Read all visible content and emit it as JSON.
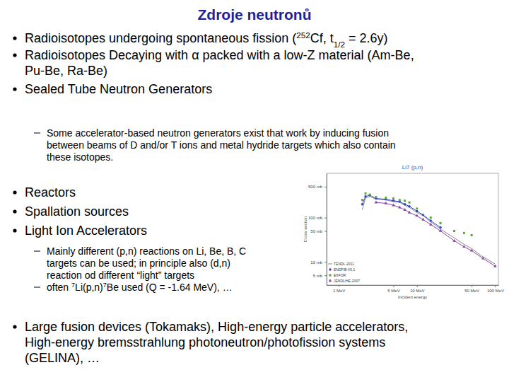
{
  "title": "Zdroje neutronů",
  "blocks": [
    {
      "level": 1,
      "lines": [
        [
          "Radioisotopes undergoing spontaneous fission (",
          {
            "sup": "252"
          },
          "Cf, t",
          {
            "sub": "1/2"
          },
          " = 2.6y)"
        ]
      ]
    },
    {
      "level": 1,
      "lines": [
        [
          "Radioisotopes Decaying with α packed with a low-Z material (Am-Be,"
        ],
        [
          "Pu-Be, Ra-Be)"
        ]
      ]
    },
    {
      "level": 1,
      "lines": [
        [
          "Sealed Tube Neutron Generators"
        ]
      ]
    },
    {
      "level": 2,
      "lines": [
        [
          "Some accelerator-based neutron generators exist that work by inducing fusion"
        ],
        [
          "between beams of D and/or T ions and metal hydride targets which also contain"
        ],
        [
          "these isotopes."
        ]
      ]
    },
    {
      "level": 1,
      "lines": [
        [
          "Reactors"
        ]
      ]
    },
    {
      "level": 1,
      "lines": [
        [
          "Spallation sources"
        ]
      ]
    },
    {
      "level": 1,
      "lines": [
        [
          "Light Ion Accelerators"
        ]
      ]
    },
    {
      "level": 2,
      "lines": [
        [
          "Mainly different (p,n) reactions on Li, Be, B, C"
        ],
        [
          "targets can be used; in principle also (d,n)"
        ],
        [
          "reaction od different “light” targets"
        ]
      ]
    },
    {
      "level": 2,
      "lines": [
        [
          "often ",
          {
            "sup": "7"
          },
          "Li(p,n)",
          {
            "sup": "7"
          },
          "Be used (Q = -1.64 MeV), …"
        ]
      ]
    },
    {
      "level": 1,
      "lines": [
        [
          "Large fusion devices (Tokamaks), High-energy particle accelerators,"
        ],
        [
          "High-energy bremsstrahlung photoneutron/photofission systems"
        ],
        [
          "(GELINA), …"
        ]
      ]
    }
  ],
  "chart_data": {
    "type": "line",
    "title": "Li7 (p,n)",
    "x_label": "Incident energy",
    "y_label": "Cross section",
    "log": true,
    "grid": false,
    "legend": "lower left",
    "xlim": [
      0.7,
      110
    ],
    "xticks": [
      {
        "value": 1,
        "label": "1 MeV"
      },
      {
        "value": 5,
        "label": "5 MeV"
      },
      {
        "value": 10,
        "label": "10 MeV"
      },
      {
        "value": 50,
        "label": "50 MeV"
      },
      {
        "value": 100,
        "label": "100 MeV"
      }
    ],
    "ylim": [
      3,
      1000
    ],
    "yticks": [
      {
        "value": 5,
        "label": "5 mb"
      },
      {
        "value": 10,
        "label": "10 mb"
      },
      {
        "value": 50,
        "label": "50 mb"
      },
      {
        "value": 100,
        "label": "100 mb"
      },
      {
        "value": 500,
        "label": "500 mb"
      }
    ],
    "x": [
      2.0,
      2.2,
      2.5,
      3,
      4,
      5,
      6,
      7,
      8,
      10,
      12,
      15,
      20,
      30,
      40,
      50,
      70,
      100
    ],
    "series": [
      {
        "name": "TENDL-2011",
        "color": "#888888",
        "marker": "none",
        "line_style": "solid",
        "values": [
          150,
          280,
          300,
          260,
          250,
          230,
          220,
          190,
          170,
          130,
          110,
          80,
          55,
          35,
          25,
          20,
          13,
          9
        ]
      },
      {
        "name": "ENDF/B-VII.1",
        "color": "#3344cc",
        "marker": "circle",
        "line_style": "solid",
        "values": [
          200,
          300,
          320,
          270,
          260,
          240,
          230,
          200,
          180,
          140,
          115,
          85,
          60,
          null,
          null,
          null,
          null,
          null
        ]
      },
      {
        "name": "EXFOR",
        "color": "#55aa33",
        "marker": "square",
        "line_style": "none",
        "values": [
          250,
          350,
          330,
          290,
          280,
          270,
          250,
          240,
          220,
          160,
          null,
          100,
          75,
          50,
          45,
          40,
          null,
          null
        ]
      },
      {
        "name": "JENDL/HE-2007",
        "color": "#8844aa",
        "marker": "triangle",
        "line_style": "solid",
        "values": [
          null,
          null,
          null,
          220,
          210,
          190,
          170,
          150,
          130,
          110,
          90,
          70,
          50,
          30,
          22,
          18,
          12,
          8
        ]
      }
    ]
  }
}
